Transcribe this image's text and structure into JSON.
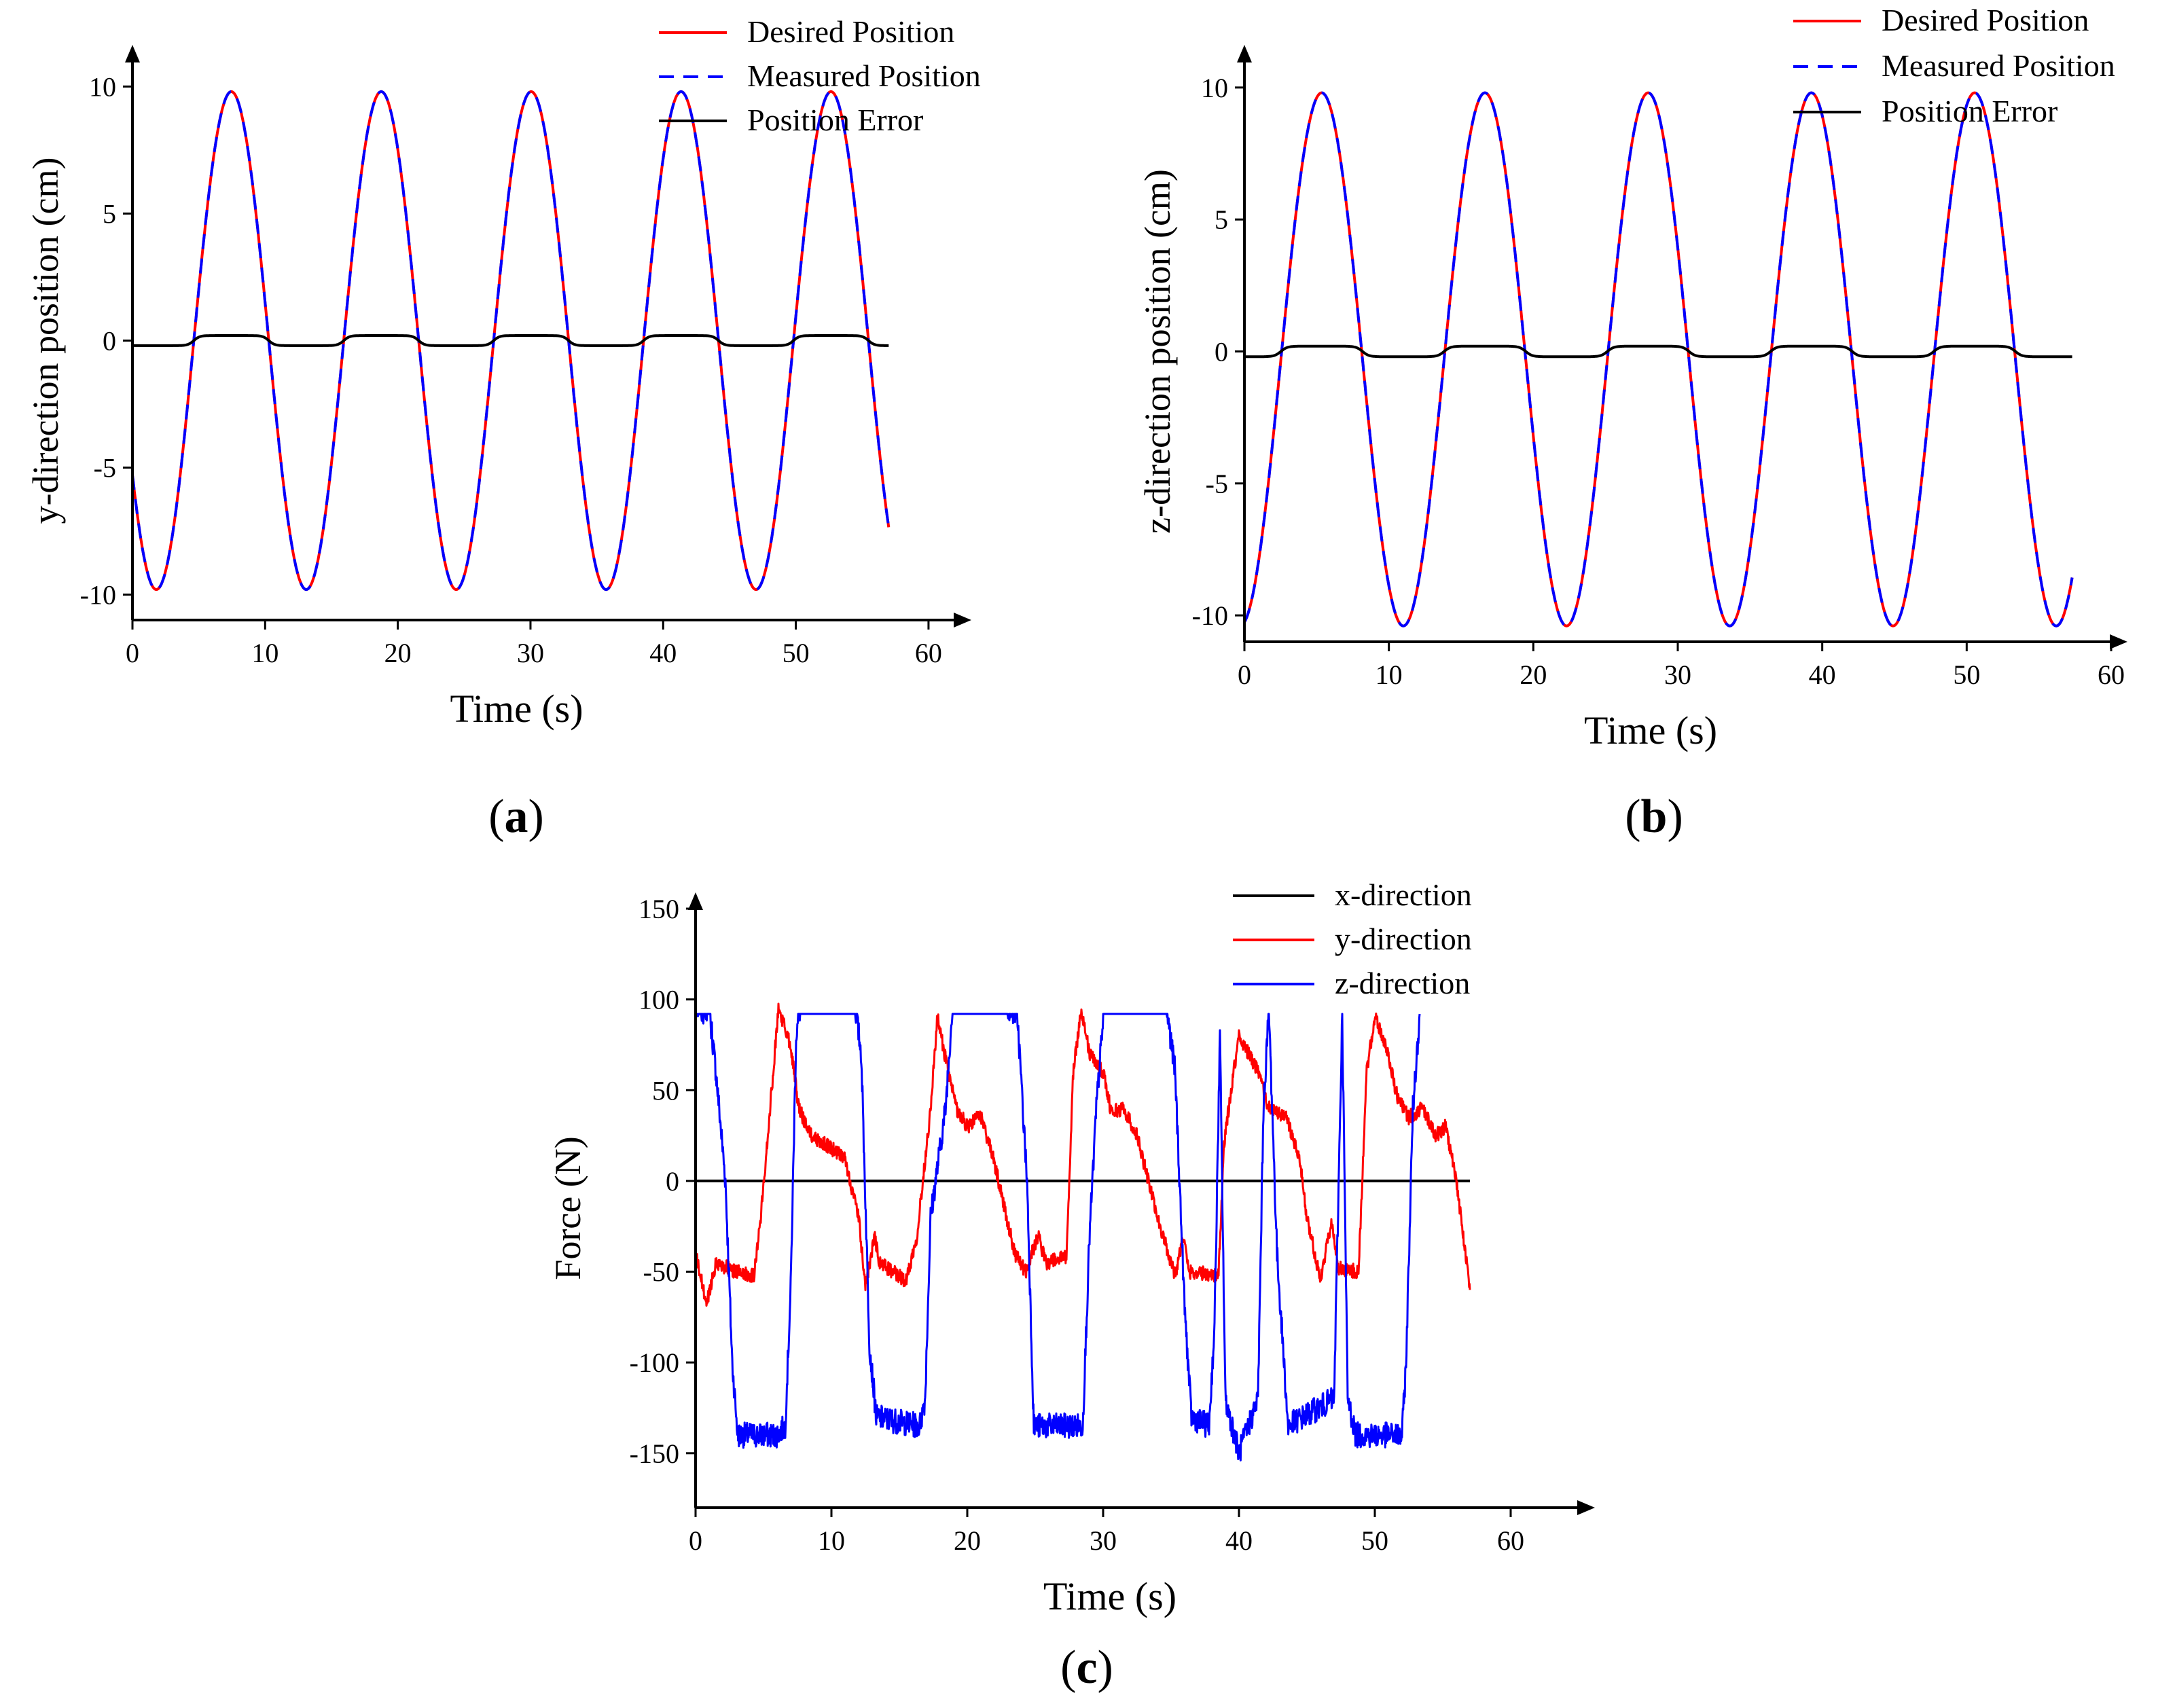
{
  "chart_data": [
    {
      "type": "line",
      "panel": "a",
      "caption": "(a)",
      "caption_bold": "a",
      "xlabel": "Time (s)",
      "ylabel": "y-direction position (cm)",
      "xlim": [
        0,
        62
      ],
      "ylim": [
        -11,
        11
      ],
      "xticks": [
        0,
        10,
        20,
        30,
        40,
        50,
        60
      ],
      "yticks": [
        -10,
        -5,
        0,
        5,
        10
      ],
      "legend": [
        "Desired Position",
        "Measured Position",
        "Position Error"
      ],
      "series": [
        {
          "name": "Desired Position",
          "color": "#ff0000",
          "style": "solid",
          "kind": "sine",
          "amplitude": 9.8,
          "period": 11.3,
          "phase_s": 1.8,
          "t_end": 57
        },
        {
          "name": "Measured Position",
          "color": "#0000ff",
          "style": "dashed",
          "kind": "sine",
          "amplitude": 9.8,
          "period": 11.3,
          "phase_s": 1.8,
          "t_end": 57
        },
        {
          "name": "Position Error",
          "color": "#000000",
          "style": "solid",
          "kind": "square",
          "amplitude": 0.2,
          "period": 11.3,
          "phase_s": 1.8,
          "t_end": 57
        }
      ]
    },
    {
      "type": "line",
      "panel": "b",
      "caption": "(b)",
      "caption_bold": "b",
      "xlabel": "Time (s)",
      "ylabel": "z-direction position (cm)",
      "xlim": [
        0,
        60
      ],
      "ylim": [
        -11,
        11
      ],
      "xticks": [
        0,
        10,
        20,
        30,
        40,
        50,
        60
      ],
      "yticks": [
        -10,
        -5,
        0,
        5,
        10
      ],
      "legend": [
        "Desired Position",
        "Measured Position",
        "Position Error"
      ],
      "series": [
        {
          "name": "Desired Position",
          "color": "#ff0000",
          "style": "solid",
          "kind": "sine",
          "amplitude": 10.1,
          "offset": -0.3,
          "period": 11.3,
          "phase_s": 11.0,
          "t_end": 57.3
        },
        {
          "name": "Measured Position",
          "color": "#0000ff",
          "style": "dashed",
          "kind": "sine",
          "amplitude": 10.1,
          "offset": -0.3,
          "period": 11.3,
          "phase_s": 11.0,
          "t_end": 57.3
        },
        {
          "name": "Position Error",
          "color": "#000000",
          "style": "solid",
          "kind": "square",
          "amplitude": 0.2,
          "period": 11.3,
          "phase_s": 11.0,
          "t_end": 57.3
        }
      ]
    },
    {
      "type": "line",
      "panel": "c",
      "caption": "(c)",
      "caption_bold": "c",
      "xlabel": "Time (s)",
      "ylabel": "Force (N)",
      "xlim": [
        0,
        65
      ],
      "ylim": [
        -180,
        150
      ],
      "xticks": [
        0,
        10,
        20,
        30,
        40,
        50,
        60
      ],
      "yticks": [
        -150,
        -100,
        -50,
        0,
        50,
        100,
        150
      ],
      "legend": [
        "x-direction",
        "y-direction",
        "z-direction"
      ],
      "series": [
        {
          "name": "x-direction",
          "color": "#000000",
          "kind": "constant",
          "value": 0,
          "t_end": 57
        },
        {
          "name": "y-direction",
          "color": "#ff0000",
          "kind": "keyframes",
          "noise": 4,
          "points": [
            [
              0,
              -40
            ],
            [
              0.8,
              -68
            ],
            [
              1.5,
              -45
            ],
            [
              3,
              -50
            ],
            [
              4.3,
              -52
            ],
            [
              4.8,
              -20
            ],
            [
              5.6,
              50
            ],
            [
              6.1,
              95
            ],
            [
              7,
              75
            ],
            [
              7.6,
              40
            ],
            [
              8.5,
              25
            ],
            [
              10,
              18
            ],
            [
              11,
              12
            ],
            [
              12,
              -20
            ],
            [
              12.5,
              -58
            ],
            [
              13.2,
              -30
            ],
            [
              13.5,
              -45
            ],
            [
              15.5,
              -55
            ],
            [
              16.3,
              -30
            ],
            [
              17.3,
              40
            ],
            [
              17.8,
              90
            ],
            [
              18.6,
              60
            ],
            [
              19.2,
              40
            ],
            [
              20,
              30
            ],
            [
              21,
              36
            ],
            [
              22,
              10
            ],
            [
              23.5,
              -40
            ],
            [
              24.3,
              -50
            ],
            [
              25.2,
              -30
            ],
            [
              25.8,
              -45
            ],
            [
              27.3,
              -42
            ],
            [
              27.8,
              60
            ],
            [
              28.4,
              95
            ],
            [
              29,
              70
            ],
            [
              30,
              60
            ],
            [
              30.6,
              38
            ],
            [
              31.5,
              40
            ],
            [
              32.5,
              25
            ],
            [
              34,
              -20
            ],
            [
              35.3,
              -52
            ],
            [
              35.9,
              -30
            ],
            [
              36.3,
              -50
            ],
            [
              38.5,
              -52
            ],
            [
              38.9,
              20
            ],
            [
              39.6,
              60
            ],
            [
              40,
              80
            ],
            [
              41.3,
              62
            ],
            [
              42.2,
              40
            ],
            [
              43.5,
              35
            ],
            [
              44.5,
              10
            ],
            [
              45,
              -20
            ],
            [
              46,
              -55
            ],
            [
              46.8,
              -22
            ],
            [
              47.3,
              -48
            ],
            [
              48.8,
              -50
            ],
            [
              49.4,
              60
            ],
            [
              50,
              90
            ],
            [
              50.8,
              75
            ],
            [
              51.7,
              45
            ],
            [
              52.5,
              35
            ],
            [
              53.5,
              40
            ],
            [
              54.5,
              25
            ],
            [
              55.2,
              30
            ],
            [
              56,
              0
            ],
            [
              57,
              -60
            ]
          ]
        },
        {
          "name": "z-direction",
          "color": "#0000ff",
          "kind": "keyframes",
          "noise": 7,
          "clip_top": 92,
          "points": [
            [
              0,
              92
            ],
            [
              1,
              95
            ],
            [
              1.5,
              60
            ],
            [
              2.2,
              0
            ],
            [
              2.7,
              -100
            ],
            [
              3.1,
              -140
            ],
            [
              6,
              -140
            ],
            [
              6.6,
              -135
            ],
            [
              7,
              -60
            ],
            [
              7.4,
              80
            ],
            [
              8,
              110
            ],
            [
              10,
              115
            ],
            [
              11.5,
              110
            ],
            [
              12.2,
              70
            ],
            [
              12.8,
              -90
            ],
            [
              13.3,
              -130
            ],
            [
              16.5,
              -135
            ],
            [
              16.9,
              -120
            ],
            [
              17.3,
              -20
            ],
            [
              18.4,
              40
            ],
            [
              19.1,
              118
            ],
            [
              20,
              115
            ],
            [
              22.5,
              100
            ],
            [
              23.7,
              90
            ],
            [
              24.4,
              0
            ],
            [
              24.9,
              -135
            ],
            [
              28.5,
              -135
            ],
            [
              29,
              -30
            ],
            [
              29.5,
              40
            ],
            [
              30.3,
              118
            ],
            [
              31,
              115
            ],
            [
              34.5,
              105
            ],
            [
              35.3,
              60
            ],
            [
              36,
              -70
            ],
            [
              36.5,
              -130
            ],
            [
              37.8,
              -135
            ],
            [
              38.2,
              -80
            ],
            [
              38.6,
              80
            ],
            [
              39,
              -120
            ],
            [
              40,
              -150
            ],
            [
              41.4,
              -120
            ],
            [
              41.8,
              40
            ],
            [
              42.2,
              95
            ],
            [
              42.8,
              -40
            ],
            [
              43.4,
              -110
            ],
            [
              43.6,
              -135
            ],
            [
              47,
              -120
            ],
            [
              47.6,
              92
            ],
            [
              48,
              -120
            ],
            [
              48.6,
              -140
            ],
            [
              52,
              -140
            ],
            [
              52.3,
              -100
            ],
            [
              52.8,
              40
            ],
            [
              53.3,
              92
            ]
          ]
        }
      ]
    }
  ]
}
